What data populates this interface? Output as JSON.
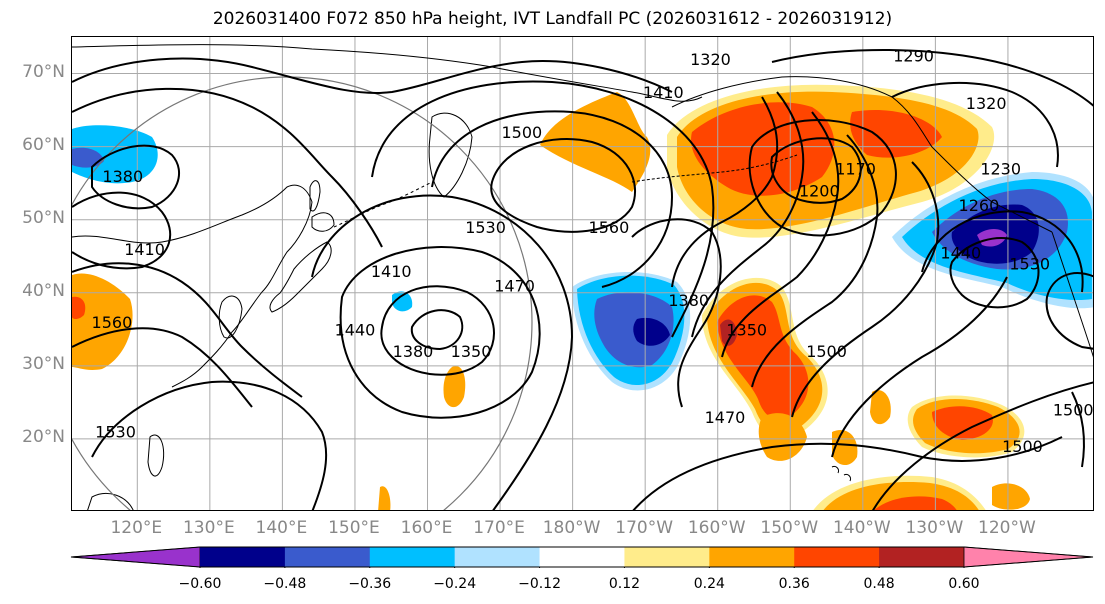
{
  "title": "2026031400 F072 850 hPa height, IVT Landfall PC (2026031612 - 2026031912)",
  "map": {
    "projection": "cylindrical",
    "lon_range": [
      111,
      252
    ],
    "lat_range": [
      10,
      75
    ],
    "lat_labels": [
      "70°N",
      "60°N",
      "50°N",
      "40°N",
      "30°N",
      "20°N"
    ],
    "lon_labels": [
      "120°E",
      "130°E",
      "140°E",
      "150°E",
      "160°E",
      "170°E",
      "180°W",
      "170°W",
      "160°W",
      "150°W",
      "140°W",
      "130°W",
      "120°W"
    ],
    "contour_labels": [
      {
        "text": "1320",
        "lon": 199,
        "lat": 72
      },
      {
        "text": "1290",
        "lon": 227,
        "lat": 72.5
      },
      {
        "text": "1320",
        "lon": 237,
        "lat": 66
      },
      {
        "text": "1410",
        "lon": 192.5,
        "lat": 67.5
      },
      {
        "text": "1500",
        "lon": 173,
        "lat": 62
      },
      {
        "text": "1380",
        "lon": 118,
        "lat": 56
      },
      {
        "text": "1410",
        "lon": 121,
        "lat": 46
      },
      {
        "text": "1560",
        "lon": 116.5,
        "lat": 36
      },
      {
        "text": "1530",
        "lon": 117,
        "lat": 21
      },
      {
        "text": "1410",
        "lon": 155,
        "lat": 43
      },
      {
        "text": "1440",
        "lon": 150,
        "lat": 35
      },
      {
        "text": "1380",
        "lon": 158,
        "lat": 32
      },
      {
        "text": "1350",
        "lon": 166,
        "lat": 32
      },
      {
        "text": "1530",
        "lon": 168,
        "lat": 49
      },
      {
        "text": "1470",
        "lon": 172,
        "lat": 41
      },
      {
        "text": "1560",
        "lon": 185,
        "lat": 49
      },
      {
        "text": "1380",
        "lon": 196,
        "lat": 39
      },
      {
        "text": "1350",
        "lon": 204,
        "lat": 35
      },
      {
        "text": "1500",
        "lon": 215,
        "lat": 32
      },
      {
        "text": "1470",
        "lon": 201,
        "lat": 23
      },
      {
        "text": "1200",
        "lon": 214,
        "lat": 54
      },
      {
        "text": "1170",
        "lon": 219,
        "lat": 57
      },
      {
        "text": "1230",
        "lon": 239,
        "lat": 57
      },
      {
        "text": "1260",
        "lon": 236,
        "lat": 52
      },
      {
        "text": "1440",
        "lon": 233.5,
        "lat": 45.5
      },
      {
        "text": "1530",
        "lon": 243,
        "lat": 44
      },
      {
        "text": "1500",
        "lon": 242,
        "lat": 19
      },
      {
        "text": "1500",
        "lon": 249,
        "lat": 24
      }
    ]
  },
  "colors": {
    "levels": [
      {
        "label": "< -0.60",
        "color": "#9932CC"
      },
      {
        "label": "-0.60 to -0.48",
        "color": "#00008B"
      },
      {
        "label": "-0.48 to -0.36",
        "color": "#3A5BCD"
      },
      {
        "label": "-0.36 to -0.24",
        "color": "#00BFFF"
      },
      {
        "label": "-0.24 to -0.12",
        "color": "#B0E2FF"
      },
      {
        "label": "-0.12 to 0.12",
        "color": "#FFFFFF"
      },
      {
        "label": "0.12 to 0.24",
        "color": "#FFEC8B"
      },
      {
        "label": "0.24 to 0.36",
        "color": "#FFA500"
      },
      {
        "label": "0.36 to 0.48",
        "color": "#FF4500"
      },
      {
        "label": "0.48 to 0.60",
        "color": "#B22222"
      },
      {
        "label": "> 0.60",
        "color": "#FF82AB"
      }
    ]
  },
  "colorbar": {
    "ticks": [
      "−0.60",
      "−0.48",
      "−0.36",
      "−0.24",
      "−0.12",
      "0.12",
      "0.24",
      "0.36",
      "0.48",
      "0.60"
    ]
  }
}
